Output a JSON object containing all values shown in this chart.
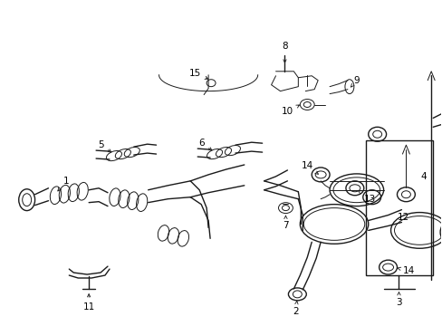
{
  "background_color": "#ffffff",
  "line_color": "#1a1a1a",
  "label_color": "#000000",
  "label_fontsize": 7.5,
  "arrow_color": "#000000"
}
